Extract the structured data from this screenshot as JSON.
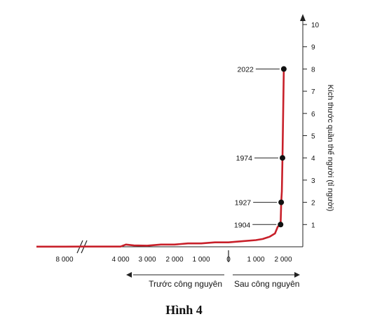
{
  "chart_data": {
    "type": "line",
    "title": "",
    "xlabel": "",
    "ylabel": "Kích thước quần thể người (tỉ người)",
    "ylim": [
      0,
      10
    ],
    "y_ticks": [
      "1",
      "2",
      "3",
      "4",
      "5",
      "6",
      "7",
      "8",
      "9",
      "10"
    ],
    "x_ticks": [
      "8 000",
      "4 000",
      "3 000",
      "2 000",
      "1 000",
      "0",
      "1 000",
      "2 000"
    ],
    "era_labels": {
      "before": "Trước công nguyên",
      "after": "Sau công nguyên"
    },
    "axis_break": true,
    "line_color": "#c8202a",
    "series": [
      {
        "x": [
          -9000,
          -8000,
          -6000,
          -4000,
          -3800,
          -3500,
          -3000,
          -2500,
          -2000,
          -1500,
          -1000,
          -500,
          0,
          500,
          1000,
          1250,
          1500,
          1700,
          1800,
          1850,
          1900,
          1904,
          1927,
          1950,
          1974,
          2000,
          2022
        ],
        "values": [
          0.005,
          0.005,
          0.01,
          0.01,
          0.1,
          0.06,
          0.05,
          0.1,
          0.1,
          0.15,
          0.15,
          0.2,
          0.2,
          0.25,
          0.3,
          0.35,
          0.45,
          0.6,
          0.9,
          0.95,
          1.0,
          1.0,
          2.0,
          2.5,
          4.0,
          6.1,
          8.0
        ]
      }
    ],
    "annotations": [
      {
        "label": "1904",
        "x": 1904,
        "y": 1
      },
      {
        "label": "1927",
        "x": 1927,
        "y": 2
      },
      {
        "label": "1974",
        "x": 1974,
        "y": 4
      },
      {
        "label": "2022",
        "x": 2022,
        "y": 8
      }
    ]
  },
  "caption": "Hình 4"
}
